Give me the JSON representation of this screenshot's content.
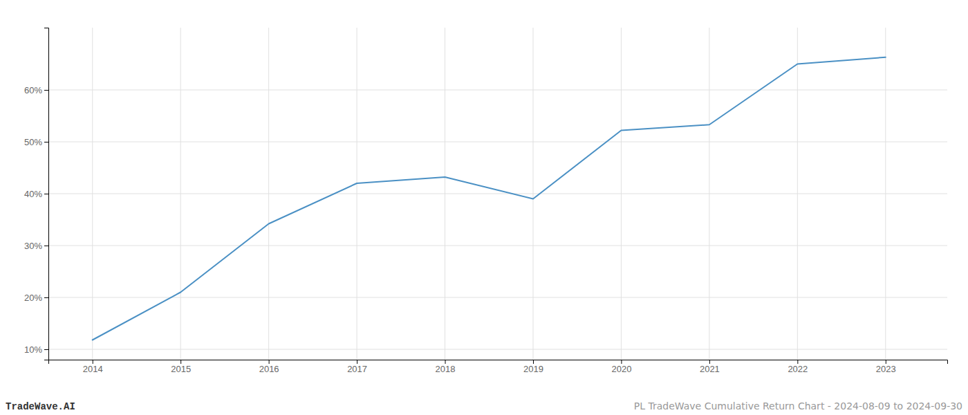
{
  "chart_data": {
    "type": "line",
    "x": [
      2014,
      2015,
      2016,
      2017,
      2018,
      2019,
      2020,
      2021,
      2022,
      2023
    ],
    "values": [
      11.8,
      21.0,
      34.2,
      42.0,
      43.2,
      39.0,
      52.2,
      53.3,
      65.0,
      66.3
    ],
    "color": "#4a90c4",
    "xlim": [
      2013.5,
      2023.7
    ],
    "xticks": [
      2014,
      2015,
      2016,
      2017,
      2018,
      2019,
      2020,
      2021,
      2022,
      2023
    ],
    "ylim": [
      8,
      72
    ],
    "yticks": [
      {
        "value": 10,
        "label": "10%"
      },
      {
        "value": 20,
        "label": "20%"
      },
      {
        "value": 30,
        "label": "30%"
      },
      {
        "value": 40,
        "label": "40%"
      },
      {
        "value": 50,
        "label": "50%"
      },
      {
        "value": 60,
        "label": "60%"
      }
    ],
    "grid": true,
    "annotations": [
      "TradeWave.AI",
      "PL TradeWave Cumulative Return Chart - 2024-08-09 to 2024-09-30"
    ]
  }
}
